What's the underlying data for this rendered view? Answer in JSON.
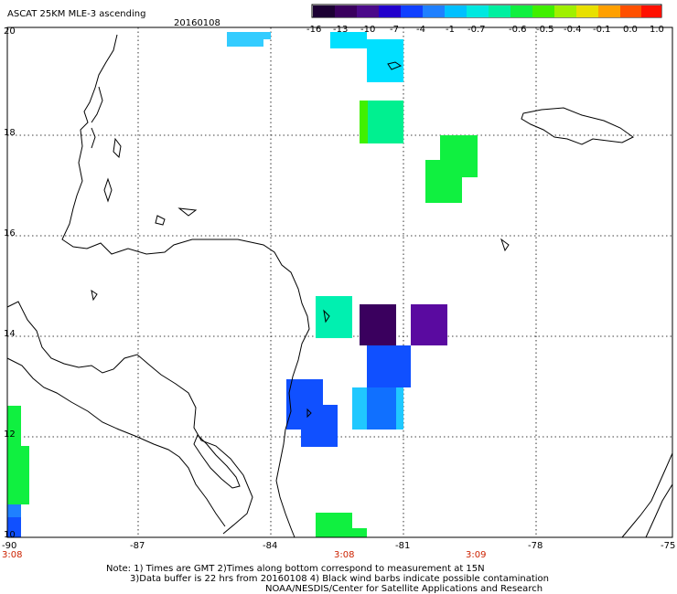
{
  "header": {
    "title": "ASCAT 25KM MLE-3 ascending",
    "date": "20160108"
  },
  "colorbar": {
    "colors": [
      "#1c0033",
      "#3a005e",
      "#4b0a8a",
      "#2200cc",
      "#1040ff",
      "#1f80ff",
      "#00c0ff",
      "#00e8e0",
      "#00f0a0",
      "#10f040",
      "#40f000",
      "#a0f000",
      "#e8e000",
      "#ffa000",
      "#ff5000",
      "#ff1000"
    ],
    "labels": [
      "-16",
      "-13",
      "-10",
      "-7",
      "-4",
      "-1",
      "-0.7",
      "-0.6",
      "-0.5",
      "-0.4",
      "-0.1",
      "0.0",
      "1.0"
    ]
  },
  "axes": {
    "lon_labels": [
      "-90",
      "-87",
      "-84",
      "-81",
      "-78",
      "-75"
    ],
    "lat_labels": [
      "20",
      "18",
      "16",
      "14",
      "12",
      "10"
    ],
    "times": [
      "3:08",
      "3:08",
      "3:09"
    ]
  },
  "notes": {
    "line1": "Note: 1) Times are GMT 2)Times along bottom correspond to measurement at 15N",
    "line2": "3)Data buffer is 22 hrs from 20160108 4) Black wind barbs indicate possible contamination",
    "line3": "NOAA/NESDIS/Center for Satellite Applications and Research"
  }
}
